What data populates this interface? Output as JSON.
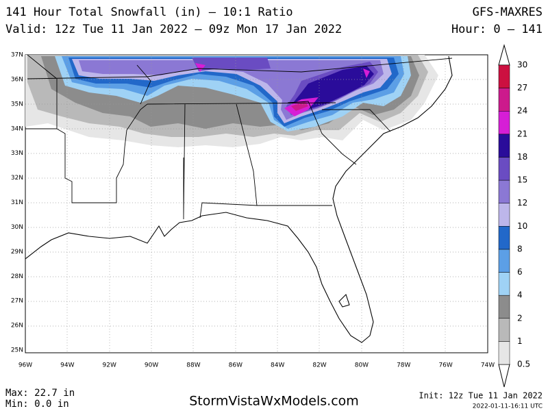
{
  "header": {
    "title": "141 Hour Total Snowfall (in) – 10:1 Ratio",
    "model": "GFS-MAXRES",
    "valid": "Valid: 12z Tue 11 Jan 2022 – 09z Mon 17 Jan 2022",
    "hour": "Hour: 0 – 141"
  },
  "map": {
    "lat_labels": [
      "37N",
      "36N",
      "35N",
      "34N",
      "33N",
      "32N",
      "31N",
      "30N",
      "29N",
      "28N",
      "27N",
      "26N",
      "25N"
    ],
    "lon_labels": [
      "96W",
      "94W",
      "92W",
      "90W",
      "88W",
      "86W",
      "84W",
      "82W",
      "80W",
      "78W",
      "76W",
      "74W"
    ]
  },
  "colorbar": {
    "labels": [
      0.5,
      1,
      2,
      4,
      6,
      8,
      10,
      12,
      15,
      18,
      21,
      24,
      27,
      30
    ],
    "colors": [
      "#e6e6e6",
      "#b9b9b9",
      "#8c8c8c",
      "#9fd2f5",
      "#5c9fe6",
      "#2268c9",
      "#bdb6ea",
      "#8b78d4",
      "#6a4cc2",
      "#2a0c9a",
      "#d61ed6",
      "#cc1a8c",
      "#cc1040"
    ]
  },
  "footer": {
    "max": "Max: 22.7 in",
    "min": "Min: 0.0 in",
    "site": "StormVistaWxModels.com",
    "init": "Init: 12z Tue 11 Jan 2022",
    "stamp": "2022-01-11-16:11 UTC"
  }
}
